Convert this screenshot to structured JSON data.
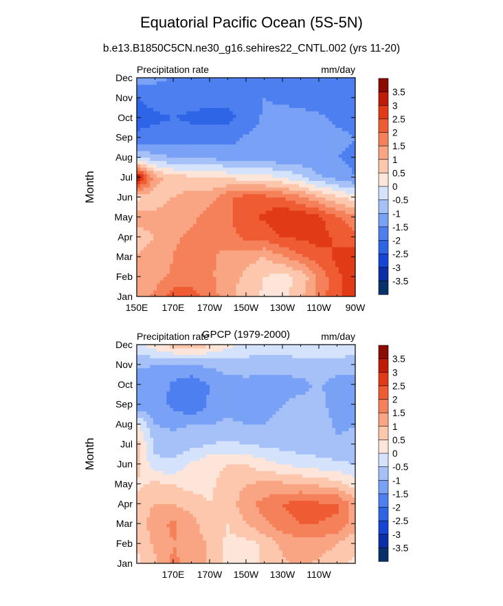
{
  "title": "Equatorial Pacific Ocean (5S-5N)",
  "subtitle": "b.e13.B1850C5CN.ne30_g16.sehires22_CNTL.002 (yrs 11-20)",
  "colors": {
    "neg": [
      "#08306b",
      "#0a2fa8",
      "#1645d6",
      "#2e64e6",
      "#4e7ff0",
      "#79a1f5",
      "#a6c1f8",
      "#d4e3fb"
    ],
    "pos": [
      "#fde6d9",
      "#fcc7ad",
      "#f9a583",
      "#f5815a",
      "#ef5c33",
      "#e03a17",
      "#bf1b07",
      "#8c0a00"
    ]
  },
  "chart_data": [
    {
      "type": "heatmap",
      "panel_title": "",
      "left_label": "Precipitation rate",
      "right_label": "mm/day",
      "ylabel": "Month",
      "xlabel": "",
      "y_ticks": [
        "Jan",
        "Feb",
        "Mar",
        "Apr",
        "May",
        "Jun",
        "Jul",
        "Aug",
        "Sep",
        "Oct",
        "Nov",
        "Dec"
      ],
      "x_ticks": [
        "150E",
        "170E",
        "170W",
        "150W",
        "130W",
        "110W",
        "90W"
      ],
      "x_tick_lons": [
        150,
        170,
        190,
        210,
        230,
        250,
        270
      ],
      "xlim": [
        150,
        270
      ],
      "levels": [
        -3.5,
        -3,
        -2.5,
        -2,
        -1.5,
        -1,
        -0.5,
        0,
        0.5,
        1,
        1.5,
        2,
        2.5,
        3,
        3.5
      ],
      "colorbar_labels": [
        "3.5",
        "3",
        "2.5",
        "2",
        "1.5",
        "1",
        "0.5",
        "0",
        "-0.5",
        "-1",
        "-1.5",
        "-2",
        "-2.5",
        "-3",
        "-3.5"
      ],
      "lons": [
        150,
        160,
        170,
        180,
        190,
        200,
        210,
        220,
        230,
        240,
        250,
        260,
        270
      ],
      "values": [
        [
          1.3,
          1.6,
          2.3,
          2.2,
          1.8,
          1.2,
          0.7,
          0.4,
          0.3,
          0.9,
          1.7,
          2.4,
          2.9
        ],
        [
          1.1,
          1.3,
          1.6,
          1.8,
          1.6,
          1.2,
          0.9,
          0.5,
          0.3,
          0.6,
          1.6,
          2.4,
          2.8
        ],
        [
          1.0,
          1.2,
          1.5,
          1.9,
          1.6,
          1.3,
          1.2,
          1.0,
          1.4,
          1.9,
          2.3,
          2.6,
          2.8
        ],
        [
          0.8,
          1.0,
          1.4,
          1.6,
          1.6,
          1.8,
          2.1,
          2.2,
          2.5,
          2.6,
          2.7,
          2.4,
          2.2
        ],
        [
          1.2,
          1.1,
          1.3,
          1.4,
          1.7,
          1.9,
          2.4,
          2.6,
          3.0,
          2.9,
          2.6,
          2.1,
          1.6
        ],
        [
          0.4,
          0.8,
          1.0,
          1.2,
          1.3,
          1.9,
          2.2,
          2.2,
          2.0,
          1.6,
          1.1,
          0.6,
          0.2
        ],
        [
          3.7,
          1.2,
          0.7,
          0.6,
          0.5,
          0.4,
          0.3,
          0.2,
          0.0,
          -0.4,
          -0.9,
          -1.2,
          -1.5
        ],
        [
          -0.6,
          -0.8,
          -1.0,
          -1.0,
          -1.1,
          -1.2,
          -1.3,
          -1.3,
          -1.4,
          -1.4,
          -1.5,
          -1.5,
          -1.6
        ],
        [
          -1.8,
          -1.8,
          -1.7,
          -1.7,
          -1.7,
          -1.7,
          -1.4,
          -1.2,
          -1.2,
          -1.2,
          -1.3,
          -1.4,
          -1.5
        ],
        [
          -2.3,
          -2.1,
          -2.0,
          -2.1,
          -2.2,
          -2.1,
          -1.9,
          -1.4,
          -1.3,
          -1.3,
          -1.4,
          -1.6,
          -1.6
        ],
        [
          -2.0,
          -1.8,
          -1.8,
          -1.8,
          -1.8,
          -1.9,
          -1.8,
          -1.5,
          -1.6,
          -1.7,
          -1.8,
          -1.8,
          -1.8
        ],
        [
          -1.3,
          -1.4,
          -1.5,
          -1.5,
          -1.6,
          -1.6,
          -1.6,
          -1.5,
          -1.6,
          -1.6,
          -1.7,
          -1.8,
          -1.8
        ]
      ]
    },
    {
      "type": "heatmap",
      "panel_title": "GPCP (1979-2000)",
      "left_label": "Precipitation rate",
      "right_label": "mm/day",
      "ylabel": "Month",
      "xlabel": "",
      "y_ticks": [
        "Jan",
        "Feb",
        "Mar",
        "Apr",
        "May",
        "Jun",
        "Jul",
        "Aug",
        "Sep",
        "Oct",
        "Nov",
        "Dec"
      ],
      "x_ticks": [
        "170E",
        "170W",
        "150W",
        "130W",
        "110W"
      ],
      "x_tick_lons": [
        170,
        190,
        210,
        230,
        250
      ],
      "xlim": [
        150,
        270
      ],
      "levels": [
        -3.5,
        -3,
        -2.5,
        -2,
        -1.5,
        -1,
        -0.5,
        0,
        0.5,
        1,
        1.5,
        2,
        2.5,
        3,
        3.5
      ],
      "colorbar_labels": [
        "3.5",
        "3",
        "2.5",
        "2",
        "1.5",
        "1",
        "0.5",
        "0",
        "-0.5",
        "-1",
        "-1.5",
        "-2",
        "-2.5",
        "-3",
        "-3.5"
      ],
      "lons": [
        150,
        160,
        170,
        180,
        190,
        200,
        210,
        220,
        230,
        240,
        250,
        260,
        270
      ],
      "values": [
        [
          0.4,
          0.9,
          1.6,
          1.3,
          0.9,
          0.4,
          0.2,
          0.6,
          0.9,
          1.1,
          0.9,
          0.6,
          0.4
        ],
        [
          0.5,
          1.1,
          1.5,
          1.4,
          0.9,
          0.4,
          0.3,
          0.6,
          1.1,
          1.3,
          1.3,
          1.0,
          0.6
        ],
        [
          0.6,
          1.3,
          1.6,
          1.2,
          0.6,
          0.5,
          1.0,
          1.4,
          1.8,
          2.0,
          2.0,
          1.9,
          1.2
        ],
        [
          0.7,
          1.0,
          1.0,
          0.8,
          0.5,
          0.7,
          1.3,
          1.7,
          2.0,
          2.2,
          2.1,
          2.1,
          1.2
        ],
        [
          0.4,
          0.6,
          0.5,
          0.3,
          0.4,
          0.7,
          1.0,
          1.1,
          1.1,
          1.0,
          0.9,
          0.7,
          0.3
        ],
        [
          0.8,
          -0.4,
          -0.4,
          0.1,
          0.4,
          0.5,
          0.5,
          0.2,
          0.0,
          -0.2,
          -0.3,
          -0.4,
          -0.5
        ],
        [
          0.7,
          -0.6,
          -0.8,
          -0.7,
          -0.5,
          -0.4,
          -0.5,
          -0.6,
          -0.7,
          -0.8,
          -0.8,
          -0.9,
          -0.9
        ],
        [
          0.1,
          -1.0,
          -1.1,
          -1.0,
          -1.0,
          -0.9,
          -1.0,
          -1.0,
          -0.9,
          -0.8,
          -0.7,
          -1.1,
          -1.0
        ],
        [
          -1.4,
          -1.3,
          -1.6,
          -2.0,
          -1.4,
          -1.2,
          -1.2,
          -1.1,
          -1.0,
          -0.8,
          -0.9,
          -1.2,
          -1.1
        ],
        [
          -1.3,
          -1.2,
          -1.6,
          -1.9,
          -1.5,
          -1.2,
          -1.2,
          -1.3,
          -1.3,
          -1.2,
          -0.9,
          -1.3,
          -1.3
        ],
        [
          -0.9,
          -1.0,
          -1.0,
          -1.0,
          -0.9,
          -0.8,
          -0.7,
          -0.7,
          -0.7,
          -0.6,
          -0.6,
          -0.6,
          -0.7
        ],
        [
          -0.2,
          0.3,
          0.7,
          0.9,
          0.6,
          0.2,
          -0.2,
          -0.3,
          -0.3,
          -0.3,
          -0.3,
          -0.3,
          -0.3
        ]
      ]
    }
  ]
}
